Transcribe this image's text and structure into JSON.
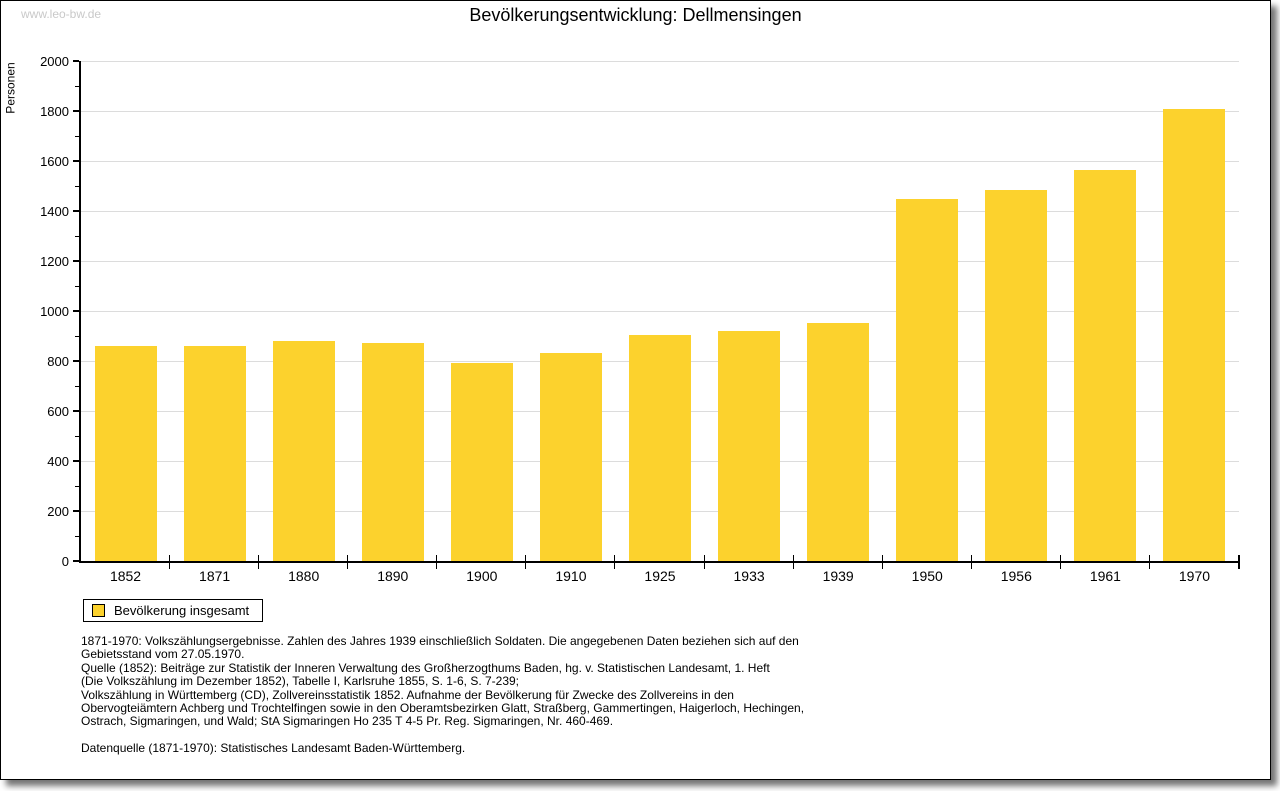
{
  "watermark": "www.leo-bw.de",
  "title": "Bevölkerungsentwicklung: Dellmensingen",
  "chart_data": {
    "type": "bar",
    "title": "Bevölkerungsentwicklung: Dellmensingen",
    "xlabel": "",
    "ylabel": "Personen",
    "ylim": [
      0,
      2000
    ],
    "ytick_step": 200,
    "ytick_minor_step": 100,
    "grid": true,
    "bar_color": "#FCD22D",
    "gridline_color": "#DCDCDC",
    "categories": [
      "1852",
      "1871",
      "1880",
      "1890",
      "1900",
      "1910",
      "1925",
      "1933",
      "1939",
      "1950",
      "1956",
      "1961",
      "1970"
    ],
    "values": [
      860,
      860,
      881,
      874,
      793,
      832,
      903,
      921,
      954,
      1449,
      1483,
      1564,
      1807
    ],
    "legend": {
      "label": "Bevölkerung insgesamt",
      "position": "bottom-left",
      "swatch_color": "#FCD22D"
    }
  },
  "notes": {
    "lines": [
      "1871-1970: Volkszählungsergebnisse. Zahlen des Jahres 1939 einschließlich Soldaten. Die angegebenen Daten beziehen sich auf den",
      "Gebietsstand vom 27.05.1970.",
      "Quelle (1852): Beiträge zur Statistik der Inneren Verwaltung des Großherzogthums Baden, hg. v. Statistischen Landesamt, 1. Heft",
      "(Die Volkszählung im Dezember 1852), Tabelle I, Karlsruhe 1855, S. 1-6, S. 7-239;",
      "Volkszählung in Württemberg (CD), Zollvereinsstatistik 1852. Aufnahme der Bevölkerung für Zwecke des Zollvereins in den",
      "Obervogteiämtern Achberg und Trochtelfingen sowie in den Oberamtsbezirken Glatt, Straßberg, Gammertingen, Haigerloch, Hechingen,",
      "Ostrach, Sigmaringen, und Wald; StA Sigmaringen Ho 235 T 4-5 Pr. Reg. Sigmaringen, Nr. 460-469."
    ],
    "datasource": "Datenquelle (1871-1970): Statistisches Landesamt Baden-Württemberg."
  }
}
